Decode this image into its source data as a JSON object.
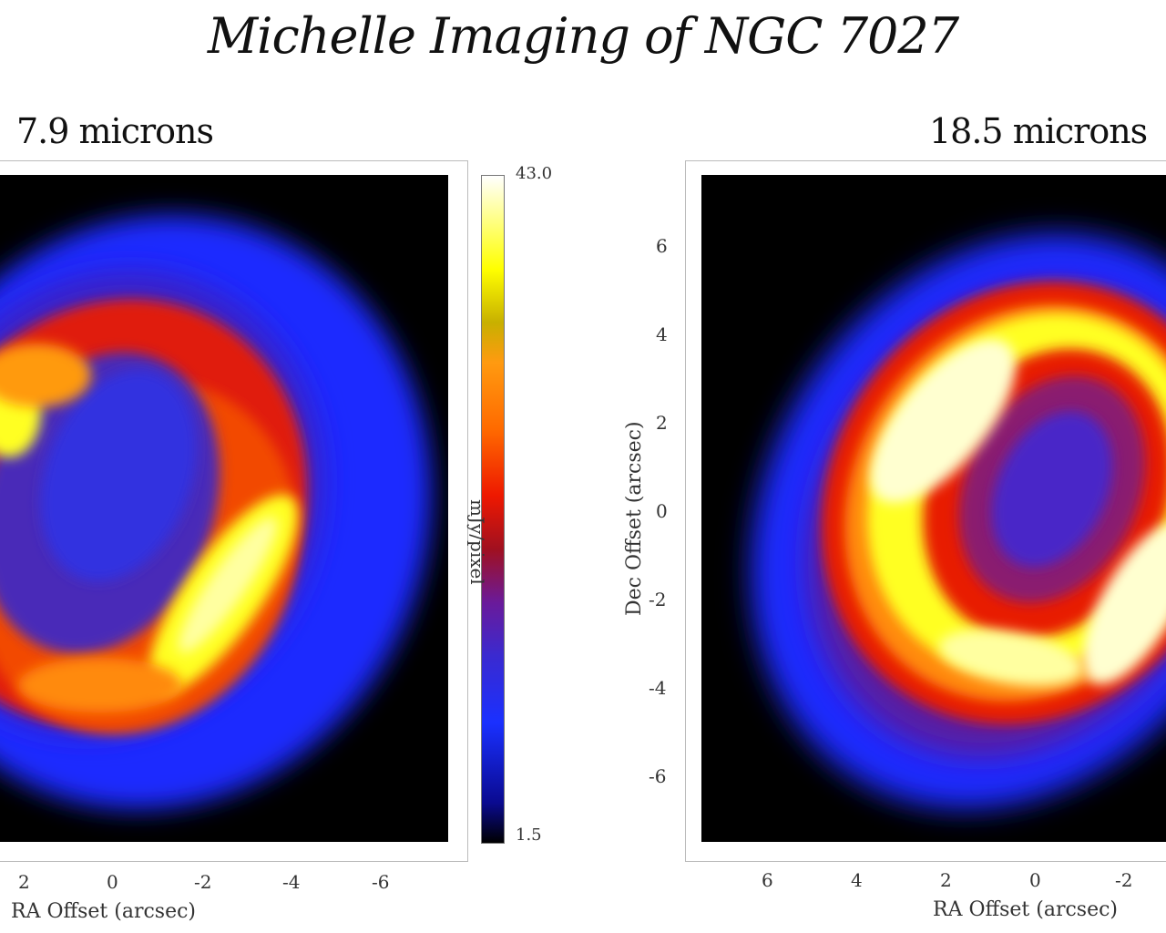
{
  "title": "Michelle Imaging of NGC 7027",
  "left_panel": {
    "title": "7.9 microns",
    "x_ticks": [
      "2",
      "0",
      "-2",
      "-4",
      "-6"
    ],
    "x_label": "RA Offset (arcsec)"
  },
  "colorbar": {
    "max_label": "43.0",
    "min_label": "1.5",
    "unit_label": "mJy/pixel"
  },
  "right_panel": {
    "title": "18.5 microns",
    "x_ticks": [
      "6",
      "4",
      "2",
      "0",
      "-2"
    ],
    "y_ticks": [
      "6",
      "4",
      "2",
      "0",
      "-2",
      "-4",
      "-6"
    ],
    "x_label": "RA Offset (arcsec)",
    "y_label": "Dec Offset (arcsec)"
  },
  "colors": {
    "background": "#000000",
    "blue": "#1a2cff",
    "red": "#ee1800",
    "orange": "#ff8c10",
    "yellow": "#ffff00",
    "white": "#ffffff"
  }
}
